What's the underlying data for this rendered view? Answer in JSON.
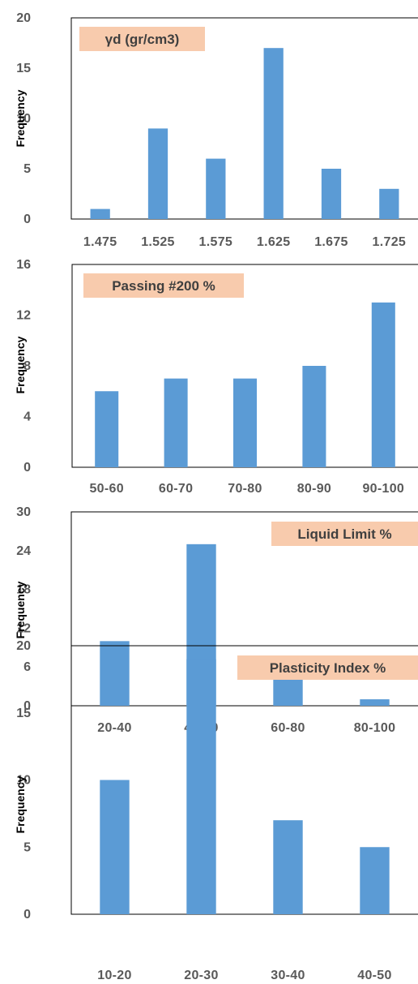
{
  "colors": {
    "bar": "#5b9bd5",
    "title_bg": "#f8cbad",
    "frame": "#000000",
    "tick_text": "#595959"
  },
  "chart_data": [
    {
      "type": "bar",
      "title": "γd (gr/cm3)",
      "title_position": "top-left",
      "xlabel": "",
      "ylabel": "Frequency",
      "ylim": [
        0,
        20
      ],
      "yticks": [
        0,
        5,
        10,
        15,
        20
      ],
      "categories": [
        "1.475",
        "1.525",
        "1.575",
        "1.625",
        "1.675",
        "1.725"
      ],
      "values": [
        1,
        9,
        6,
        17,
        5,
        3
      ],
      "grid": false
    },
    {
      "type": "bar",
      "title": "Passing #200 %",
      "title_position": "top-left",
      "xlabel": "",
      "ylabel": "Frequency",
      "ylim": [
        0,
        16
      ],
      "yticks": [
        0,
        4,
        8,
        12,
        16
      ],
      "categories": [
        "50-60",
        "60-70",
        "70-80",
        "80-90",
        "90-100"
      ],
      "values": [
        6,
        7,
        7,
        8,
        13
      ],
      "grid": false
    },
    {
      "type": "bar",
      "title": "Liquid Limit %",
      "title_position": "top-right",
      "xlabel": "",
      "ylabel": "Frequency",
      "ylim": [
        0,
        30
      ],
      "yticks": [
        0,
        6,
        12,
        18,
        24,
        30
      ],
      "categories": [
        "20-40",
        "40-60",
        "60-80",
        "80-100"
      ],
      "values": [
        10,
        25,
        5,
        1
      ],
      "grid": false
    },
    {
      "type": "bar",
      "title": "Plasticity Index %",
      "title_position": "top-right",
      "xlabel": "",
      "ylabel": "Frequency",
      "ylim": [
        0,
        20
      ],
      "yticks": [
        0,
        5,
        10,
        15,
        20
      ],
      "categories": [
        "10-20",
        "20-30",
        "30-40",
        "40-50"
      ],
      "values": [
        10,
        19,
        7,
        5
      ],
      "grid": false
    }
  ]
}
